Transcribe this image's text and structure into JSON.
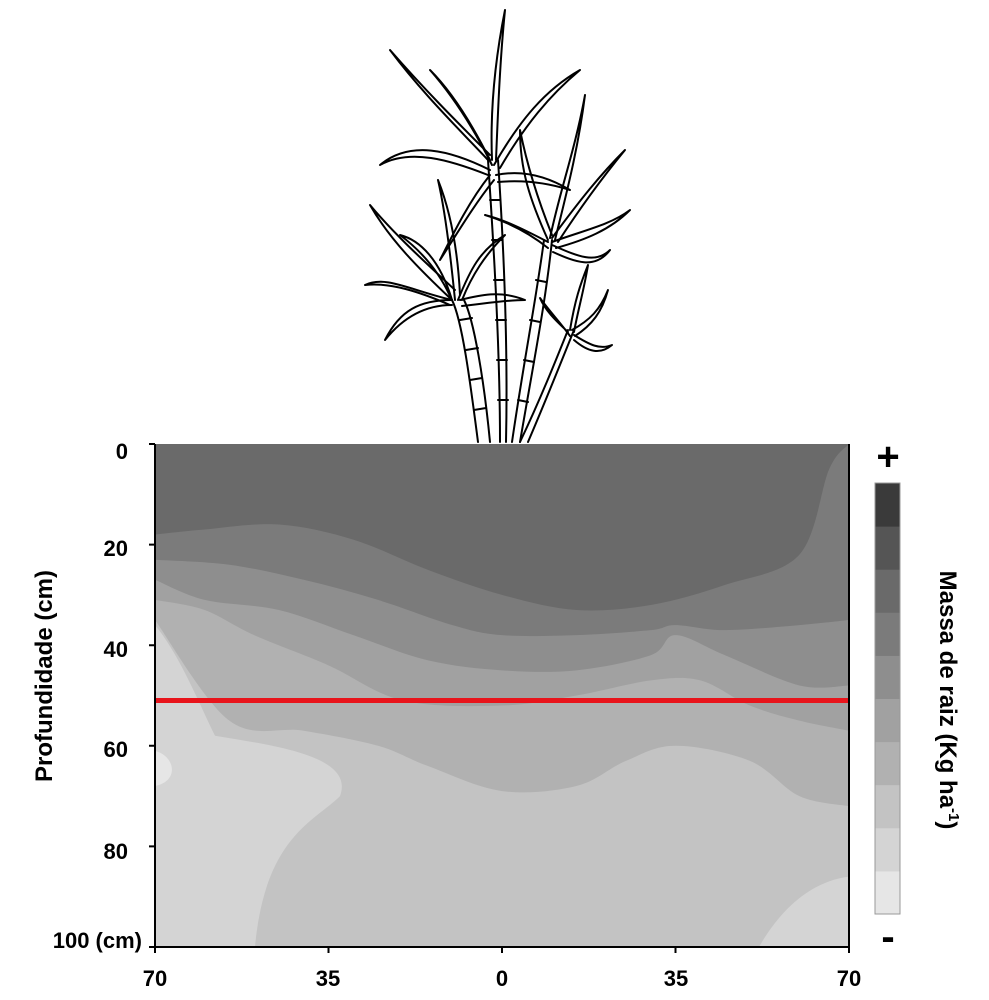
{
  "chart_data": {
    "type": "heatmap",
    "title": "",
    "ylabel": "Profundidade (cm)",
    "xlabel": "",
    "x_ticks": [
      "70",
      "35",
      "0",
      "35",
      "70"
    ],
    "y_ticks": [
      "0",
      "20",
      "40",
      "60",
      "80",
      "100 (cm)"
    ],
    "x_range_cm": [
      -70,
      70
    ],
    "y_range_cm": [
      0,
      100
    ],
    "colorbar": {
      "label": "Massa de raiz (Kg ha",
      "label_sup": "-1",
      "label_close": ")",
      "top_symbol": "+",
      "bottom_symbol": "-",
      "levels": [
        "#e6e6e6",
        "#d4d4d4",
        "#c3c3c3",
        "#b1b1b1",
        "#a1a1a1",
        "#8e8e8e",
        "#7b7b7b",
        "#6a6a6a",
        "#555555",
        "#3a3a3a"
      ]
    },
    "reference_line": {
      "depth_cm": 51,
      "color": "#e8141b"
    },
    "contour_boundaries_depth_cm": [
      {
        "name": "boundary-1",
        "x_cm": [
          -70,
          -60,
          -45,
          -30,
          -15,
          0,
          15,
          30,
          45,
          60,
          66,
          70
        ],
        "depth_cm": [
          18,
          17,
          16,
          19,
          25,
          30,
          33,
          32,
          28,
          22,
          5,
          0
        ]
      },
      {
        "name": "boundary-2",
        "x_cm": [
          -70,
          -55,
          -40,
          -25,
          -10,
          0,
          15,
          30,
          35,
          45,
          60,
          70
        ],
        "depth_cm": [
          23,
          24,
          27,
          31,
          36,
          38,
          38,
          37,
          36,
          37,
          36,
          35
        ]
      },
      {
        "name": "boundary-3",
        "x_cm": [
          -70,
          -60,
          -45,
          -30,
          -15,
          0,
          15,
          30,
          35,
          45,
          60,
          70
        ],
        "depth_cm": [
          27,
          31,
          33,
          38,
          43,
          45,
          45,
          42,
          38,
          42,
          48,
          48
        ]
      },
      {
        "name": "boundary-4",
        "x_cm": [
          -70,
          -60,
          -50,
          -35,
          -20,
          0,
          15,
          30,
          40,
          50,
          60,
          70
        ],
        "depth_cm": [
          31,
          33,
          38,
          44,
          51,
          52,
          50,
          47,
          47,
          52,
          55,
          57
        ]
      },
      {
        "name": "boundary-5",
        "x_cm": [
          -70,
          -55,
          -40,
          -25,
          -15,
          0,
          15,
          25,
          35,
          50,
          60,
          70
        ],
        "depth_cm": [
          35,
          55,
          57,
          60,
          64,
          69,
          68,
          63,
          60,
          63,
          70,
          72
        ]
      }
    ]
  }
}
